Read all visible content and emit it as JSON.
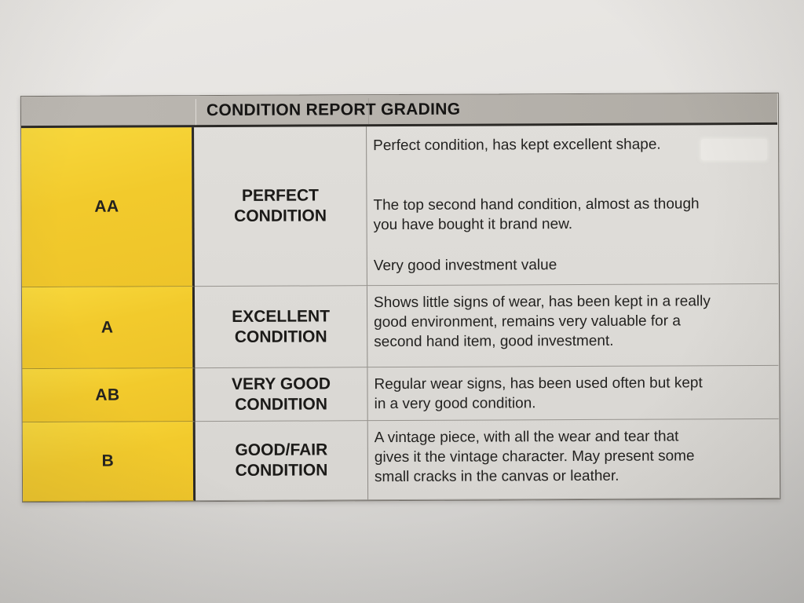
{
  "document": {
    "header": {
      "title": "CONDITION REPORT GRADING"
    },
    "grades": [
      {
        "grade": "AA",
        "label": "PERFECT\nCONDITION",
        "paragraphs": [
          "Perfect condition, has kept excellent shape.",
          "The top second hand condition, almost as though\nyou have bought it brand new.",
          "Very good investment value"
        ]
      },
      {
        "grade": "A",
        "label": "EXCELLENT\nCONDITION",
        "paragraphs": [
          "Shows little signs of wear, has been kept in a really\ngood environment, remains very valuable for a\nsecond hand item, good investment."
        ]
      },
      {
        "grade": "AB",
        "label": "VERY GOOD\nCONDITION",
        "paragraphs": [
          "Regular wear signs, has been used often but kept\nin a very good condition."
        ]
      },
      {
        "grade": "B",
        "label": "GOOD/FAIR\nCONDITION",
        "paragraphs": [
          "A vintage piece, with all the wear and tear that\ngives it the vintage character. May present some\nsmall cracks in the canvas or leather."
        ]
      }
    ],
    "colors": {
      "grade_column_yellow": "#f2ca2c",
      "header_bar_gray": "#b6b2ac",
      "paper_gray": "#dcdad6",
      "text_black": "#1e1d1b"
    }
  }
}
